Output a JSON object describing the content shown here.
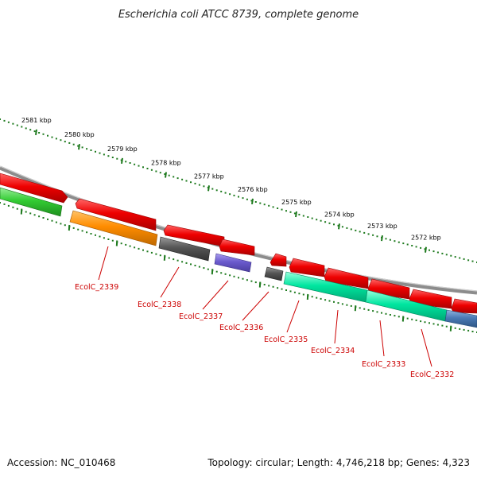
{
  "title": "Escherichia coli ATCC 8739, complete genome",
  "footer": {
    "accession": "Accession: NC_010468",
    "topology": "Topology: circular; Length: 4,746,218 bp; Genes: 4,323"
  },
  "scale_labels": [
    "2581 kbp",
    "2580 kbp",
    "2579 kbp",
    "2578 kbp",
    "2577 kbp",
    "2576 kbp",
    "2575 kbp",
    "2574 kbp",
    "2573 kbp",
    "2572 kbp"
  ],
  "gene_labels": [
    "EcolC_2339",
    "EcolC_2338",
    "EcolC_2337",
    "EcolC_2336",
    "EcolC_2335",
    "EcolC_2334",
    "EcolC_2333",
    "EcolC_2332"
  ],
  "colors": {
    "backbone": "#8c8c8c",
    "scale_ticks": "#1e7a1e",
    "label_red": "#cc0000",
    "gene_red": "#ee0000",
    "gene_green": "#33cc33",
    "gene_orange": "#ff8c00",
    "gene_gray": "#555555",
    "gene_purple": "#6a5acd",
    "gene_cyan": "#00e6a0",
    "gene_blue": "#4a7ab5"
  }
}
